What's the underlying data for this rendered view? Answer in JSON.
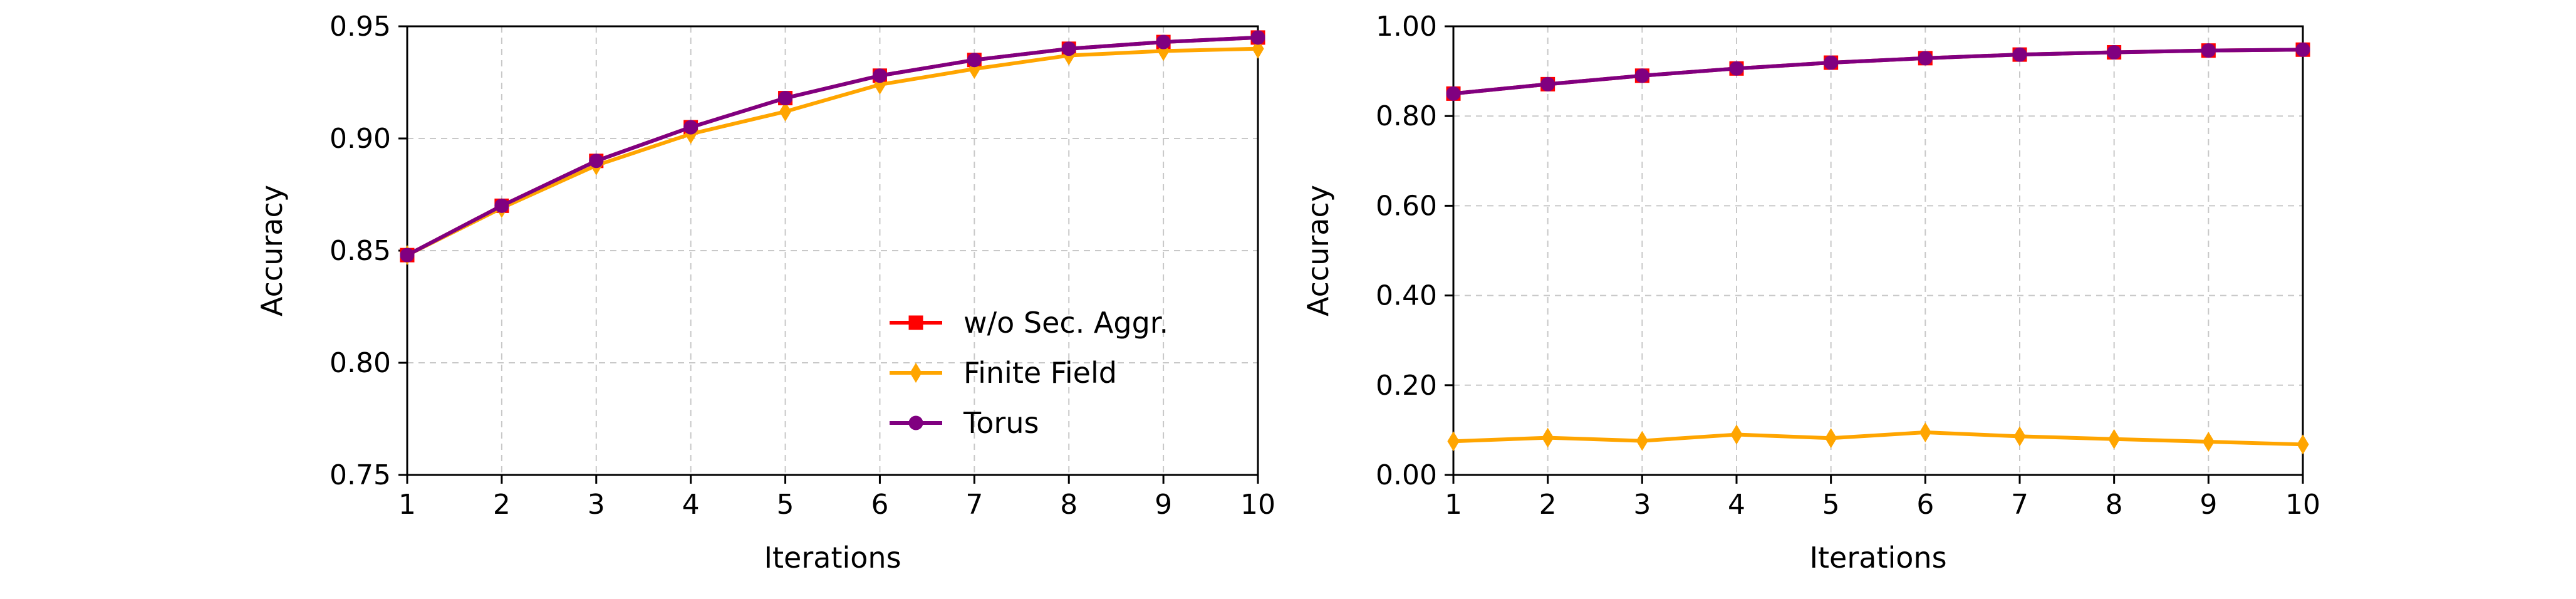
{
  "chart_data": [
    {
      "type": "line",
      "xlabel": "Iterations",
      "ylabel": "Accuracy",
      "xlim": [
        1,
        10
      ],
      "ylim": [
        0.75,
        0.95
      ],
      "x": [
        1,
        2,
        3,
        4,
        5,
        6,
        7,
        8,
        9,
        10
      ],
      "xticks": [
        "1",
        "2",
        "3",
        "4",
        "5",
        "6",
        "7",
        "8",
        "9",
        "10"
      ],
      "yticks": [
        {
          "value": 0.75,
          "label": "0.75"
        },
        {
          "value": 0.8,
          "label": "0.80"
        },
        {
          "value": 0.85,
          "label": "0.85"
        },
        {
          "value": 0.9,
          "label": "0.90"
        },
        {
          "value": 0.95,
          "label": "0.95"
        }
      ],
      "grid": true,
      "legend": "lower-right",
      "series": [
        {
          "name": "w/o Sec. Aggr.",
          "color": "#ff0000",
          "marker": "square",
          "values": [
            0.848,
            0.87,
            0.89,
            0.905,
            0.918,
            0.928,
            0.935,
            0.94,
            0.943,
            0.945
          ]
        },
        {
          "name": "Finite Field",
          "color": "#ffa500",
          "marker": "diamond",
          "values": [
            0.848,
            0.869,
            0.888,
            0.902,
            0.912,
            0.924,
            0.931,
            0.937,
            0.939,
            0.94
          ]
        },
        {
          "name": "Torus",
          "color": "#800080",
          "marker": "circle",
          "values": [
            0.848,
            0.87,
            0.89,
            0.905,
            0.918,
            0.928,
            0.935,
            0.94,
            0.943,
            0.945
          ]
        }
      ]
    },
    {
      "type": "line",
      "xlabel": "Iterations",
      "ylabel": "Accuracy",
      "xlim": [
        1,
        10
      ],
      "ylim": [
        0.0,
        1.0
      ],
      "x": [
        1,
        2,
        3,
        4,
        5,
        6,
        7,
        8,
        9,
        10
      ],
      "xticks": [
        "1",
        "2",
        "3",
        "4",
        "5",
        "6",
        "7",
        "8",
        "9",
        "10"
      ],
      "yticks": [
        {
          "value": 0.0,
          "label": "0.00"
        },
        {
          "value": 0.2,
          "label": "0.20"
        },
        {
          "value": 0.4,
          "label": "0.40"
        },
        {
          "value": 0.6,
          "label": "0.60"
        },
        {
          "value": 0.8,
          "label": "0.80"
        },
        {
          "value": 1.0,
          "label": "1.00"
        }
      ],
      "grid": true,
      "series": [
        {
          "color": "#ff0000",
          "marker": "square",
          "values": [
            0.85,
            0.871,
            0.89,
            0.906,
            0.919,
            0.929,
            0.937,
            0.942,
            0.946,
            0.948
          ]
        },
        {
          "color": "#ffa500",
          "marker": "diamond",
          "values": [
            0.075,
            0.083,
            0.076,
            0.09,
            0.082,
            0.095,
            0.086,
            0.08,
            0.074,
            0.068
          ]
        },
        {
          "color": "#800080",
          "marker": "circle",
          "values": [
            0.85,
            0.871,
            0.89,
            0.906,
            0.919,
            0.929,
            0.937,
            0.942,
            0.946,
            0.948
          ]
        }
      ]
    }
  ]
}
